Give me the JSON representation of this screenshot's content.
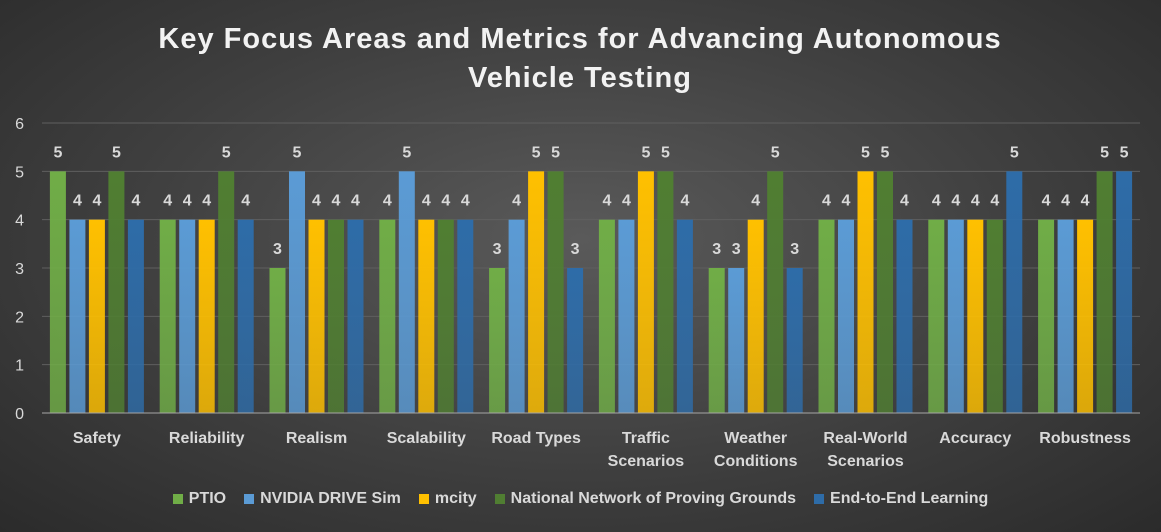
{
  "chart_data": {
    "type": "bar",
    "title": "Key Focus Areas and Metrics for Advancing Autonomous Vehicle Testing",
    "title_lines": [
      "Key Focus Areas and Metrics for Advancing Autonomous",
      "Vehicle Testing"
    ],
    "categories": [
      [
        "Safety"
      ],
      [
        "Reliability"
      ],
      [
        "Realism"
      ],
      [
        "Scalability"
      ],
      [
        "Road Types"
      ],
      [
        "Traffic",
        "Scenarios"
      ],
      [
        "Weather",
        "Conditions"
      ],
      [
        "Real-World",
        "Scenarios"
      ],
      [
        "Accuracy"
      ],
      [
        "Robustness"
      ]
    ],
    "ylim": [
      0,
      6
    ],
    "yticks": [
      0,
      1,
      2,
      3,
      4,
      5,
      6
    ],
    "grid": true,
    "legend_position": "bottom",
    "series": [
      {
        "name": "PTIO",
        "color": "#70ad47",
        "values": [
          5,
          4,
          3,
          4,
          3,
          4,
          3,
          4,
          4,
          4
        ]
      },
      {
        "name": "NVIDIA DRIVE Sim",
        "color": "#5b9bd5",
        "values": [
          4,
          4,
          5,
          5,
          4,
          4,
          3,
          4,
          4,
          4
        ]
      },
      {
        "name": "mcity",
        "color": "#ffc000",
        "values": [
          4,
          4,
          4,
          4,
          5,
          5,
          4,
          5,
          4,
          4
        ]
      },
      {
        "name": "National Network of Proving Grounds",
        "color": "#507e32",
        "values": [
          5,
          5,
          4,
          4,
          5,
          5,
          5,
          5,
          4,
          5
        ]
      },
      {
        "name": "End-to-End Learning",
        "color": "#2e6ca8",
        "values": [
          4,
          4,
          4,
          4,
          3,
          4,
          3,
          4,
          5,
          5
        ]
      }
    ]
  }
}
